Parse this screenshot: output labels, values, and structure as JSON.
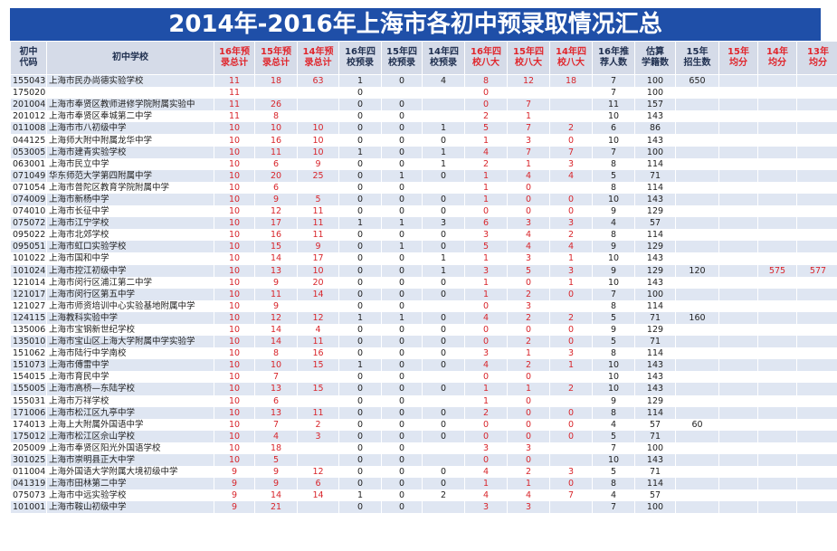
{
  "title": "2014年-2016年上海市各初中预录取情况汇总",
  "headers": [
    {
      "l1": "初中",
      "l2": "代码",
      "red": false
    },
    {
      "l1": "初中学校",
      "l2": "",
      "red": false
    },
    {
      "l1": "16年预",
      "l2": "录总计",
      "red": true
    },
    {
      "l1": "15年预",
      "l2": "录总计",
      "red": true
    },
    {
      "l1": "14年预",
      "l2": "录总计",
      "red": true
    },
    {
      "l1": "16年四",
      "l2": "校预录",
      "red": false
    },
    {
      "l1": "15年四",
      "l2": "校预录",
      "red": false
    },
    {
      "l1": "14年四",
      "l2": "校预录",
      "red": false
    },
    {
      "l1": "16年四",
      "l2": "校八大",
      "red": true
    },
    {
      "l1": "15年四",
      "l2": "校八大",
      "red": true
    },
    {
      "l1": "14年四",
      "l2": "校八大",
      "red": true
    },
    {
      "l1": "16年推",
      "l2": "荐人数",
      "red": false
    },
    {
      "l1": "估算",
      "l2": "学籍数",
      "red": false
    },
    {
      "l1": "15年",
      "l2": "招生数",
      "red": false
    },
    {
      "l1": "15年",
      "l2": "均分",
      "red": true
    },
    {
      "l1": "14年",
      "l2": "均分",
      "red": true
    },
    {
      "l1": "13年",
      "l2": "均分",
      "red": true
    }
  ],
  "rows": [
    [
      "155043",
      "上海市民办尚德实验学校",
      "11",
      "18",
      "63",
      "1",
      "0",
      "4",
      "8",
      "12",
      "18",
      "7",
      "100",
      "650",
      "",
      "",
      ""
    ],
    [
      "175020",
      "",
      "11",
      "",
      "",
      "0",
      "",
      "",
      "0",
      "",
      "",
      "7",
      "100",
      "",
      "",
      "",
      ""
    ],
    [
      "201004",
      "上海市奉贤区教师进修学院附属实验中",
      "11",
      "26",
      "",
      "0",
      "0",
      "",
      "0",
      "7",
      "",
      "11",
      "157",
      "",
      "",
      "",
      ""
    ],
    [
      "201012",
      "上海市奉贤区奉城第二中学",
      "11",
      "8",
      "",
      "0",
      "0",
      "",
      "2",
      "1",
      "",
      "10",
      "143",
      "",
      "",
      "",
      ""
    ],
    [
      "011008",
      "上海市市八初级中学",
      "10",
      "10",
      "10",
      "0",
      "0",
      "1",
      "5",
      "7",
      "2",
      "6",
      "86",
      "",
      "",
      "",
      ""
    ],
    [
      "044125",
      "上海师大附中附属龙华中学",
      "10",
      "16",
      "10",
      "0",
      "0",
      "0",
      "1",
      "3",
      "0",
      "10",
      "143",
      "",
      "",
      "",
      ""
    ],
    [
      "053005",
      "上海市建青实验学校",
      "10",
      "11",
      "10",
      "1",
      "0",
      "1",
      "4",
      "7",
      "7",
      "7",
      "100",
      "",
      "",
      "",
      ""
    ],
    [
      "063001",
      "上海市民立中学",
      "10",
      "6",
      "9",
      "0",
      "0",
      "1",
      "2",
      "1",
      "3",
      "8",
      "114",
      "",
      "",
      "",
      ""
    ],
    [
      "071049",
      "华东师范大学第四附属中学",
      "10",
      "20",
      "25",
      "0",
      "1",
      "0",
      "1",
      "4",
      "4",
      "5",
      "71",
      "",
      "",
      "",
      ""
    ],
    [
      "071054",
      "上海市普陀区教育学院附属中学",
      "10",
      "6",
      "",
      "0",
      "0",
      "",
      "1",
      "0",
      "",
      "8",
      "114",
      "",
      "",
      "",
      ""
    ],
    [
      "074009",
      "上海市新杨中学",
      "10",
      "9",
      "5",
      "0",
      "0",
      "0",
      "1",
      "0",
      "0",
      "10",
      "143",
      "",
      "",
      "",
      ""
    ],
    [
      "074010",
      "上海市长征中学",
      "10",
      "12",
      "11",
      "0",
      "0",
      "0",
      "0",
      "0",
      "0",
      "9",
      "129",
      "",
      "",
      "",
      ""
    ],
    [
      "075072",
      "上海市江宁学校",
      "10",
      "17",
      "11",
      "1",
      "1",
      "3",
      "6",
      "3",
      "3",
      "4",
      "57",
      "",
      "",
      "",
      ""
    ],
    [
      "095022",
      "上海市北郊学校",
      "10",
      "16",
      "11",
      "0",
      "0",
      "0",
      "3",
      "4",
      "2",
      "8",
      "114",
      "",
      "",
      "",
      ""
    ],
    [
      "095051",
      "上海市虹口实验学校",
      "10",
      "15",
      "9",
      "0",
      "1",
      "0",
      "5",
      "4",
      "4",
      "9",
      "129",
      "",
      "",
      "",
      ""
    ],
    [
      "101022",
      "上海市国和中学",
      "10",
      "14",
      "17",
      "0",
      "0",
      "1",
      "1",
      "3",
      "1",
      "10",
      "143",
      "",
      "",
      "",
      ""
    ],
    [
      "101024",
      "上海市控江初级中学",
      "10",
      "13",
      "10",
      "0",
      "0",
      "1",
      "3",
      "5",
      "3",
      "9",
      "129",
      "120",
      "",
      "575",
      "577"
    ],
    [
      "121014",
      "上海市闵行区浦江第二中学",
      "10",
      "9",
      "20",
      "0",
      "0",
      "0",
      "1",
      "0",
      "1",
      "10",
      "143",
      "",
      "",
      "",
      ""
    ],
    [
      "121017",
      "上海市闵行区第五中学",
      "10",
      "11",
      "14",
      "0",
      "0",
      "0",
      "1",
      "2",
      "0",
      "7",
      "100",
      "",
      "",
      "",
      ""
    ],
    [
      "121027",
      "上海市师资培训中心实验基地附属中学",
      "10",
      "9",
      "",
      "0",
      "0",
      "",
      "0",
      "3",
      "",
      "8",
      "114",
      "",
      "",
      "",
      ""
    ],
    [
      "124115",
      "上海教科实验中学",
      "10",
      "12",
      "12",
      "1",
      "1",
      "0",
      "4",
      "2",
      "2",
      "5",
      "71",
      "160",
      "",
      "",
      ""
    ],
    [
      "135006",
      "上海市宝钢新世纪学校",
      "10",
      "14",
      "4",
      "0",
      "0",
      "0",
      "0",
      "0",
      "0",
      "9",
      "129",
      "",
      "",
      "",
      ""
    ],
    [
      "135010",
      "上海市宝山区上海大学附属中学实验学",
      "10",
      "14",
      "11",
      "0",
      "0",
      "0",
      "0",
      "2",
      "0",
      "5",
      "71",
      "",
      "",
      "",
      ""
    ],
    [
      "151062",
      "上海市陆行中学南校",
      "10",
      "8",
      "16",
      "0",
      "0",
      "0",
      "3",
      "1",
      "3",
      "8",
      "114",
      "",
      "",
      "",
      ""
    ],
    [
      "151073",
      "上海市傅雷中学",
      "10",
      "10",
      "15",
      "1",
      "0",
      "0",
      "4",
      "2",
      "1",
      "10",
      "143",
      "",
      "",
      "",
      ""
    ],
    [
      "154015",
      "上海市育民中学",
      "10",
      "7",
      "",
      "0",
      "0",
      "",
      "0",
      "0",
      "",
      "10",
      "143",
      "",
      "",
      "",
      ""
    ],
    [
      "155005",
      "上海市高桥—东陆学校",
      "10",
      "13",
      "15",
      "0",
      "0",
      "0",
      "1",
      "1",
      "2",
      "10",
      "143",
      "",
      "",
      "",
      ""
    ],
    [
      "155031",
      "上海市万祥学校",
      "10",
      "6",
      "",
      "0",
      "0",
      "",
      "1",
      "0",
      "",
      "9",
      "129",
      "",
      "",
      "",
      ""
    ],
    [
      "171006",
      "上海市松江区九亭中学",
      "10",
      "13",
      "11",
      "0",
      "0",
      "0",
      "2",
      "0",
      "0",
      "8",
      "114",
      "",
      "",
      "",
      ""
    ],
    [
      "174013",
      "上海上大附属外国语中学",
      "10",
      "7",
      "2",
      "0",
      "0",
      "0",
      "0",
      "0",
      "0",
      "4",
      "57",
      "60",
      "",
      "",
      ""
    ],
    [
      "175012",
      "上海市松江区佘山学校",
      "10",
      "4",
      "3",
      "0",
      "0",
      "0",
      "0",
      "0",
      "0",
      "5",
      "71",
      "",
      "",
      "",
      ""
    ],
    [
      "205009",
      "上海市奉贤区阳光外国语学校",
      "10",
      "18",
      "",
      "0",
      "0",
      "",
      "3",
      "3",
      "",
      "7",
      "100",
      "",
      "",
      "",
      ""
    ],
    [
      "301025",
      "上海市崇明县正大中学",
      "10",
      "5",
      "",
      "0",
      "0",
      "",
      "0",
      "0",
      "",
      "10",
      "143",
      "",
      "",
      "",
      ""
    ],
    [
      "011004",
      "上海外国语大学附属大境初级中学",
      "9",
      "9",
      "12",
      "0",
      "0",
      "0",
      "4",
      "2",
      "3",
      "5",
      "71",
      "",
      "",
      "",
      ""
    ],
    [
      "041319",
      "上海市田林第二中学",
      "9",
      "9",
      "6",
      "0",
      "0",
      "0",
      "1",
      "1",
      "0",
      "8",
      "114",
      "",
      "",
      "",
      ""
    ],
    [
      "075073",
      "上海市中远实验学校",
      "9",
      "14",
      "14",
      "1",
      "0",
      "2",
      "4",
      "4",
      "7",
      "4",
      "57",
      "",
      "",
      "",
      ""
    ],
    [
      "101001",
      "上海市鞍山初级中学",
      "9",
      "21",
      "",
      "0",
      "0",
      "",
      "3",
      "3",
      "",
      "7",
      "100",
      "",
      "",
      "",
      ""
    ]
  ]
}
